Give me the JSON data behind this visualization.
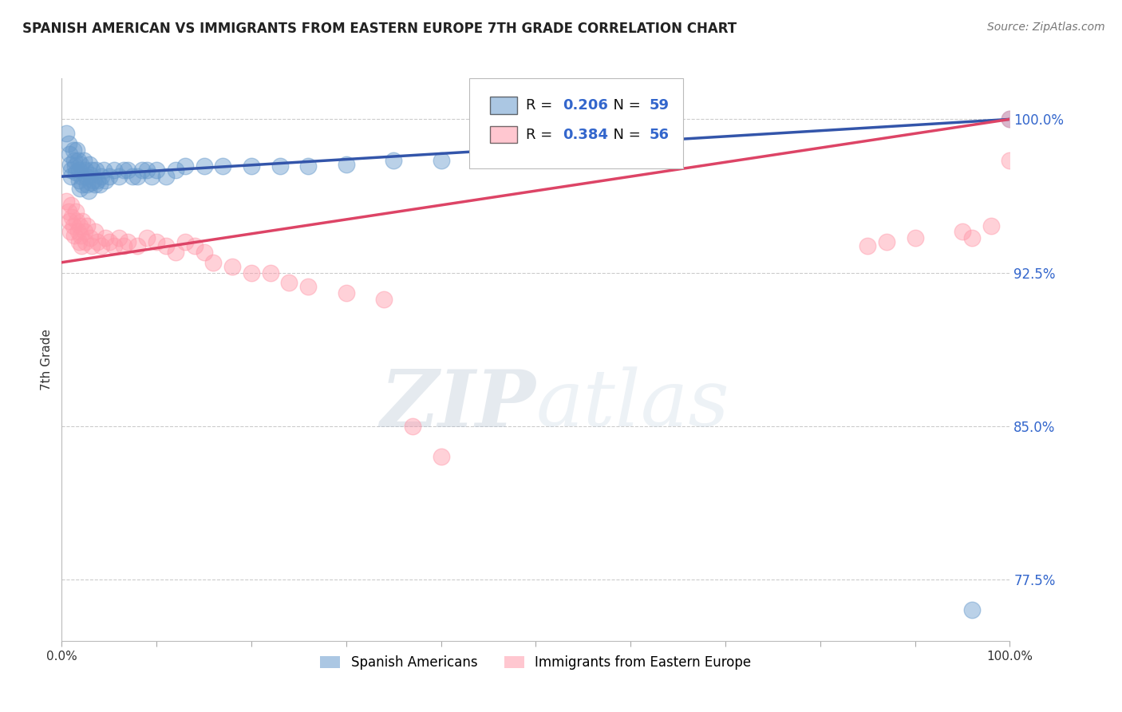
{
  "title": "SPANISH AMERICAN VS IMMIGRANTS FROM EASTERN EUROPE 7TH GRADE CORRELATION CHART",
  "source": "Source: ZipAtlas.com",
  "ylabel": "7th Grade",
  "watermark": "ZIPatlas",
  "xlim": [
    0.0,
    1.0
  ],
  "ylim": [
    0.745,
    1.02
  ],
  "xticks": [
    0.0,
    0.1,
    0.2,
    0.3,
    0.4,
    0.5,
    0.6,
    0.7,
    0.8,
    0.9,
    1.0
  ],
  "xticklabels": [
    "0.0%",
    "",
    "",
    "",
    "",
    "",
    "",
    "",
    "",
    "",
    "100.0%"
  ],
  "yticks": [
    0.775,
    0.85,
    0.925,
    1.0
  ],
  "yticklabels": [
    "77.5%",
    "85.0%",
    "92.5%",
    "100.0%"
  ],
  "blue_R": 0.206,
  "blue_N": 59,
  "pink_R": 0.384,
  "pink_N": 56,
  "blue_label": "Spanish Americans",
  "pink_label": "Immigrants from Eastern Europe",
  "blue_color": "#6699CC",
  "pink_color": "#FF99AA",
  "blue_line_color": "#3355AA",
  "pink_line_color": "#DD4466",
  "value_color": "#3366CC",
  "background_color": "#FFFFFF",
  "grid_color": "#CCCCCC",
  "watermark_color_zip": "#AABBCC",
  "watermark_color_atlas": "#BBCCDD",
  "blue_x": [
    0.005,
    0.007,
    0.008,
    0.009,
    0.01,
    0.01,
    0.012,
    0.013,
    0.014,
    0.015,
    0.016,
    0.017,
    0.018,
    0.018,
    0.019,
    0.02,
    0.021,
    0.022,
    0.023,
    0.025,
    0.026,
    0.027,
    0.028,
    0.029,
    0.03,
    0.031,
    0.032,
    0.033,
    0.035,
    0.036,
    0.038,
    0.04,
    0.042,
    0.044,
    0.046,
    0.05,
    0.055,
    0.06,
    0.065,
    0.07,
    0.075,
    0.08,
    0.085,
    0.09,
    0.095,
    0.1,
    0.11,
    0.12,
    0.13,
    0.15,
    0.17,
    0.2,
    0.23,
    0.26,
    0.3,
    0.35,
    0.4,
    0.96,
    1.0
  ],
  "blue_y": [
    0.993,
    0.988,
    0.983,
    0.978,
    0.975,
    0.972,
    0.985,
    0.98,
    0.977,
    0.974,
    0.985,
    0.98,
    0.975,
    0.97,
    0.966,
    0.978,
    0.972,
    0.968,
    0.98,
    0.975,
    0.972,
    0.968,
    0.965,
    0.978,
    0.973,
    0.969,
    0.975,
    0.97,
    0.968,
    0.975,
    0.97,
    0.968,
    0.972,
    0.975,
    0.97,
    0.972,
    0.975,
    0.972,
    0.975,
    0.975,
    0.972,
    0.972,
    0.975,
    0.975,
    0.972,
    0.975,
    0.972,
    0.975,
    0.977,
    0.977,
    0.977,
    0.977,
    0.977,
    0.977,
    0.978,
    0.98,
    0.98,
    0.76,
    1.0
  ],
  "pink_x": [
    0.005,
    0.007,
    0.008,
    0.009,
    0.01,
    0.011,
    0.012,
    0.013,
    0.015,
    0.016,
    0.017,
    0.018,
    0.019,
    0.02,
    0.021,
    0.022,
    0.024,
    0.025,
    0.027,
    0.03,
    0.032,
    0.035,
    0.038,
    0.042,
    0.046,
    0.05,
    0.055,
    0.06,
    0.065,
    0.07,
    0.08,
    0.09,
    0.1,
    0.11,
    0.12,
    0.13,
    0.14,
    0.15,
    0.16,
    0.18,
    0.2,
    0.22,
    0.24,
    0.26,
    0.3,
    0.34,
    0.37,
    0.4,
    0.85,
    0.87,
    0.9,
    0.95,
    0.96,
    0.98,
    1.0,
    1.0
  ],
  "pink_y": [
    0.96,
    0.955,
    0.95,
    0.945,
    0.958,
    0.952,
    0.948,
    0.943,
    0.955,
    0.95,
    0.945,
    0.94,
    0.948,
    0.943,
    0.938,
    0.95,
    0.945,
    0.94,
    0.948,
    0.942,
    0.938,
    0.945,
    0.94,
    0.938,
    0.942,
    0.94,
    0.938,
    0.942,
    0.938,
    0.94,
    0.938,
    0.942,
    0.94,
    0.938,
    0.935,
    0.94,
    0.938,
    0.935,
    0.93,
    0.928,
    0.925,
    0.925,
    0.92,
    0.918,
    0.915,
    0.912,
    0.85,
    0.835,
    0.938,
    0.94,
    0.942,
    0.945,
    0.942,
    0.948,
    1.0,
    0.98
  ]
}
